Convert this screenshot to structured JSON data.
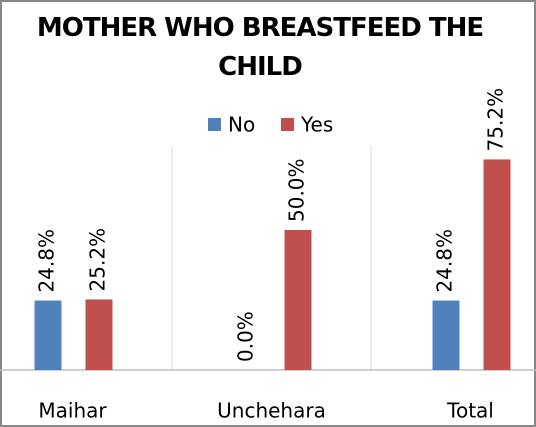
{
  "chart_data": {
    "type": "bar",
    "title": "MOTHER WHO BREASTFEED THE CHILD",
    "categories": [
      "Maihar",
      "Unchehara",
      "Total"
    ],
    "series": [
      {
        "name": "No",
        "color": "#4f81bd",
        "values": [
          24.8,
          0.0,
          24.8
        ],
        "value_labels": [
          "24.8%",
          "0.0%",
          "24.8%"
        ]
      },
      {
        "name": "Yes",
        "color": "#c0504d",
        "values": [
          25.2,
          50.0,
          75.2
        ],
        "value_labels": [
          "25.2%",
          "50.0%",
          "75.2%"
        ]
      }
    ],
    "ylim": [
      0,
      80
    ],
    "legend": "top"
  }
}
